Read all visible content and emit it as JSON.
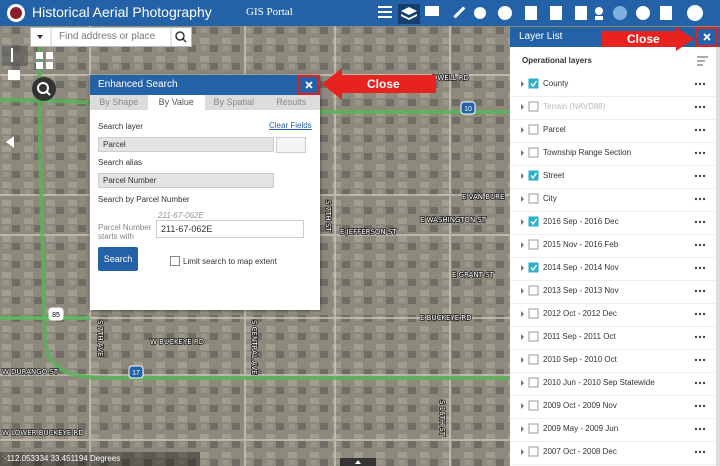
{
  "header": {
    "title": "Historical Aerial Photography",
    "subtitle": "GIS Portal"
  },
  "search": {
    "placeholder": "Find address or place"
  },
  "enhanced_search": {
    "title": "Enhanced Search",
    "tabs": [
      "By Shape",
      "By Value",
      "By Spatial",
      "Results"
    ],
    "active_tab": 1,
    "search_layer_label": "Search layer",
    "clear_fields": "Clear Fields",
    "search_layer": "Parcel",
    "search_alias_label": "Search alias",
    "search_alias": "Parcel Number",
    "search_by_label": "Search by Parcel Number",
    "example": "211-67-062E",
    "field_label": "Parcel Number starts with",
    "field_value": "211-67-062E",
    "button": "Search",
    "limit_label": "Limit search to map extent"
  },
  "layer_list": {
    "title": "Layer List",
    "section": "Operational layers",
    "layers": [
      {
        "label": "County",
        "checked": true,
        "disabled": false
      },
      {
        "label": "Terrain (NAVD88)",
        "checked": false,
        "disabled": true
      },
      {
        "label": "Parcel",
        "checked": false,
        "disabled": false
      },
      {
        "label": "Township Range Section",
        "checked": false,
        "disabled": false
      },
      {
        "label": "Street",
        "checked": true,
        "disabled": false
      },
      {
        "label": "City",
        "checked": false,
        "disabled": false
      },
      {
        "label": "2016 Sep - 2016 Dec",
        "checked": true,
        "disabled": false
      },
      {
        "label": "2015 Nov - 2016 Feb",
        "checked": false,
        "disabled": false
      },
      {
        "label": "2014 Sep - 2014 Nov",
        "checked": true,
        "disabled": false
      },
      {
        "label": "2013 Sep - 2013 Nov",
        "checked": false,
        "disabled": false
      },
      {
        "label": "2012 Oct - 2012 Dec",
        "checked": false,
        "disabled": false
      },
      {
        "label": "2011 Sep - 2011 Oct",
        "checked": false,
        "disabled": false
      },
      {
        "label": "2010 Sep - 2010 Oct",
        "checked": false,
        "disabled": false
      },
      {
        "label": "2010 Jun - 2010 Sep Statewide",
        "checked": false,
        "disabled": false
      },
      {
        "label": "2009 Oct - 2009 Nov",
        "checked": false,
        "disabled": false
      },
      {
        "label": "2009 May - 2009 Jun",
        "checked": false,
        "disabled": false
      },
      {
        "label": "2007 Oct - 2008 Dec",
        "checked": false,
        "disabled": false
      }
    ]
  },
  "callouts": [
    "Close",
    "Close"
  ],
  "map": {
    "labels": [
      "DWELL RD",
      "E WASHINGTON ST",
      "E JEFFERSON ST",
      "E VAN BURE",
      "E GRANT ST",
      "W BUCKEYE RD",
      "E BUCKEYE RD",
      "W DURANGO ST",
      "W LOWER BUCKEYE RD",
      "S 7TH AVE",
      "S CENTRAL AVE",
      "S 7TH ST",
      "S 16TH ST"
    ],
    "shields": [
      "10",
      "17",
      "85"
    ],
    "coordinates": "-112.053334 33.451194 Degrees"
  }
}
